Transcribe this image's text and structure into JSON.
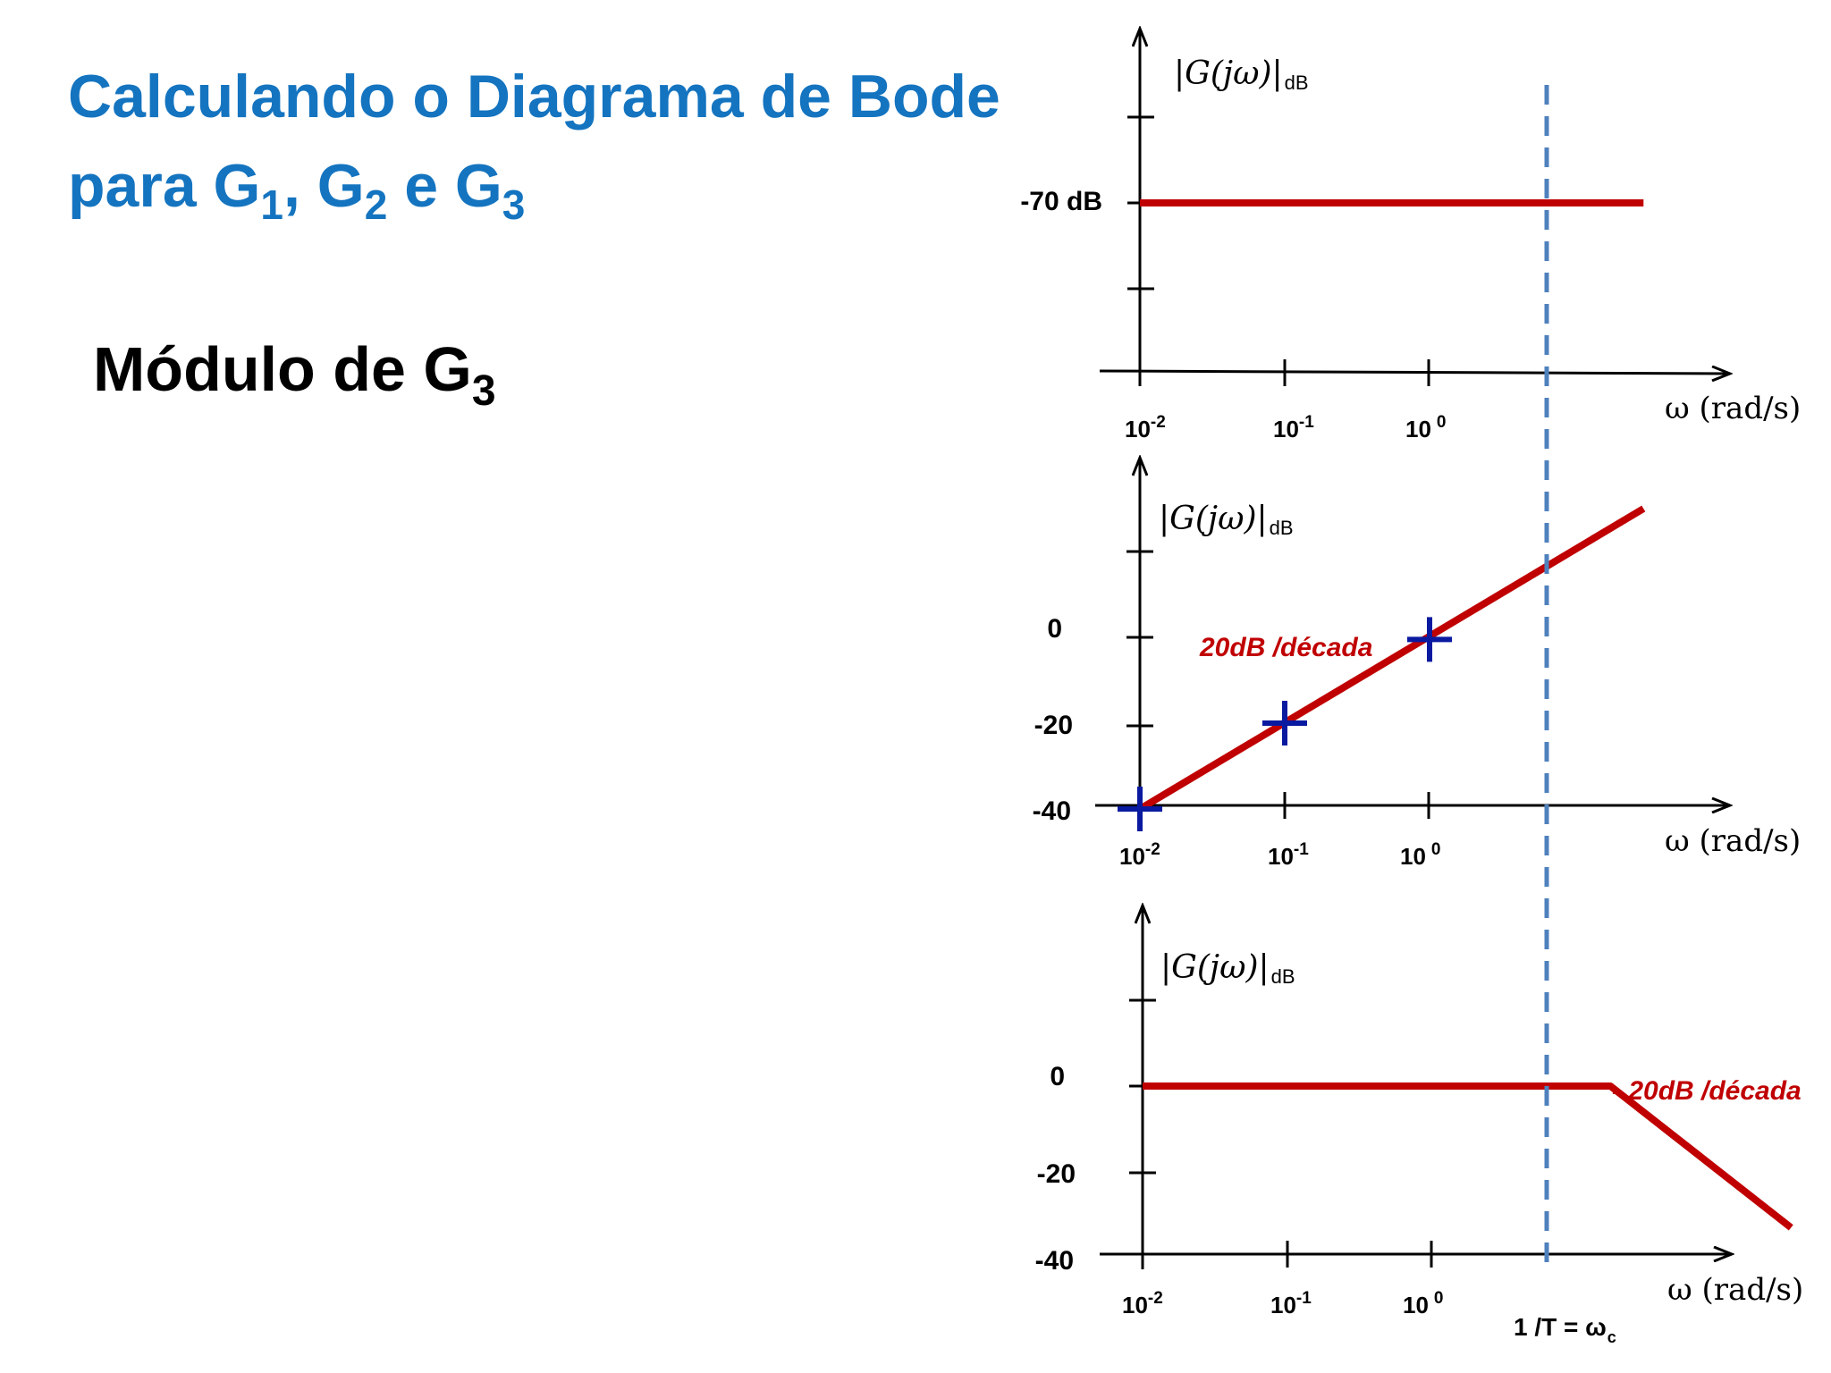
{
  "slide": {
    "title_line1": "Calculando o Diagrama de Bode",
    "title_line2_prefix": "para G",
    "title_sub1": "1",
    "title_sep1": ", G",
    "title_sub2": "2",
    "title_sep2": " e G",
    "title_sub3": "3",
    "subtitle_prefix": "Módulo de G",
    "subtitle_sub": "3"
  },
  "colors": {
    "title": "#1474c0",
    "curve": "#c00000",
    "marker": "#0a1aa0",
    "dashed_line": "#4f81bd",
    "axis": "#000000"
  },
  "axes_common": {
    "x_label": "ω (rad/s)",
    "y_label_main": "|G(jω)|",
    "y_label_sub": "dB",
    "decade_base": "10",
    "decade_exps": [
      "-2",
      "-1",
      "0"
    ]
  },
  "chart_data": [
    {
      "type": "line",
      "x_scale": "log",
      "x_ticks": [
        0.01,
        0.1,
        1
      ],
      "xlabel": "ω (rad/s)",
      "ylabel": "|G(jω)|dB",
      "y_tick_labels": [
        "-70 dB"
      ],
      "series": [
        {
          "x": [
            0.01,
            30
          ],
          "y": [
            -70,
            -70
          ]
        }
      ]
    },
    {
      "type": "line",
      "x_scale": "log",
      "x_ticks": [
        0.01,
        0.1,
        1
      ],
      "xlabel": "ω (rad/s)",
      "ylabel": "|G(jω)|dB",
      "y_tick_labels": [
        "0",
        "-20",
        "-40"
      ],
      "annotation": "20dB /década",
      "series": [
        {
          "x": [
            0.01,
            30
          ],
          "y": [
            -40,
            30
          ]
        }
      ],
      "markers": {
        "x": [
          0.01,
          0.1,
          1
        ],
        "y": [
          -40,
          -20,
          -0.5
        ]
      }
    },
    {
      "type": "line",
      "x_scale": "log",
      "x_ticks": [
        0.01,
        0.1,
        1
      ],
      "xlabel": "ω (rad/s)",
      "ylabel": "|G(jω)|dB",
      "y_tick_labels": [
        "0",
        "-20",
        "-40"
      ],
      "annotation": "- 20dB /década",
      "corner_label": "1 /T = ω",
      "corner_label_sub": "c",
      "series": [
        {
          "x": [
            0.01,
            17,
            300
          ],
          "y": [
            0,
            0,
            -33
          ]
        }
      ]
    }
  ]
}
